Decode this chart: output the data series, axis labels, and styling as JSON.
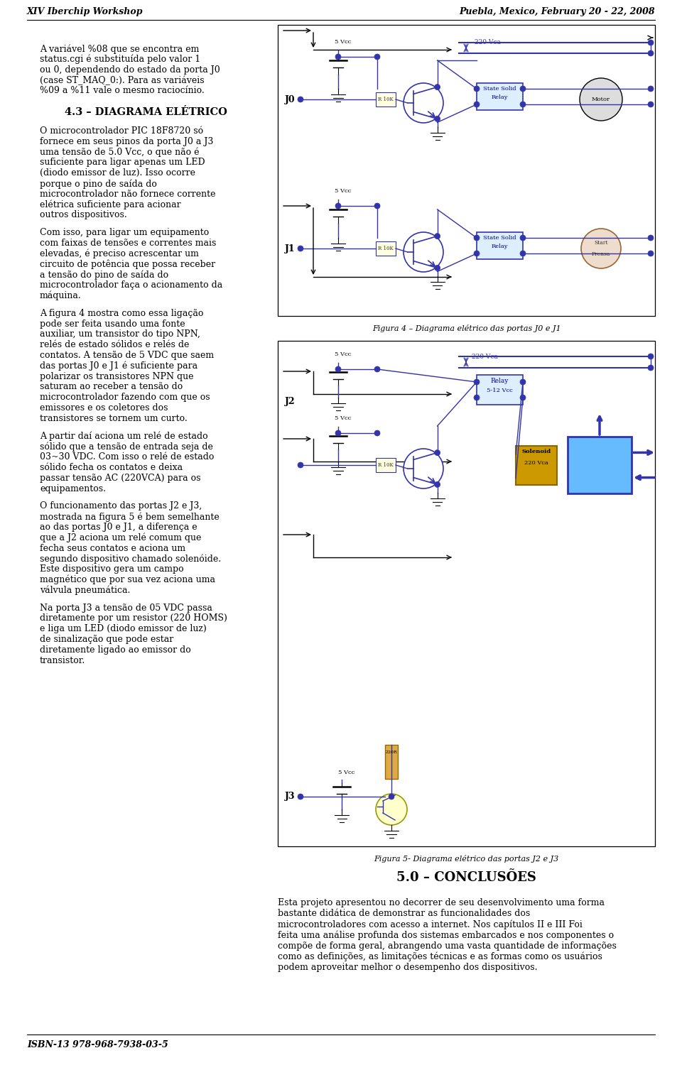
{
  "header_left": "XIV Iberchip Workshop",
  "header_right": "Puebla, Mexico, February 20 - 22, 2008",
  "footer_left": "ISBN-13 978-968-7938-03-5",
  "col1_paragraphs": [
    {
      "type": "body",
      "indent": true,
      "text": "A variável %08 que se encontra em status.cgi é substituída pelo valor 1 ou 0, dependendo do estado da porta J0 (case ST_MAQ_0:). Para as variáveis %09 a %11 vale o mesmo raciocínio."
    },
    {
      "type": "section",
      "text": "4.3 – DIAGRAMA ELÉTRICO"
    },
    {
      "type": "body",
      "indent": true,
      "text": "O microcontrolador PIC 18F8720 só fornece em seus pinos da porta J0 a J3 uma tensão de 5.0 Vcc, o que não é suficiente para ligar apenas um LED (diodo emissor de luz). Isso ocorre porque o pino de saída do microcontrolador não fornece corrente elétrica suficiente para acionar outros dispositivos."
    },
    {
      "type": "body",
      "indent": false,
      "text": "Com isso, para ligar um equipamento com faixas de tensões e correntes mais elevadas, é preciso acrescentar um circuito de potência que possa receber a tensão do pino de saída do microcontrolador faça o acionamento da máquina."
    },
    {
      "type": "body",
      "indent": false,
      "text": "A figura 4 mostra como essa ligação pode ser feita usando uma fonte auxiliar, um transistor do tipo NPN, relés de estado sólidos e relés de contatos. A tensão de 5 VDC que saem das portas J0 e J1 é suficiente para polarizar os transistores NPN que saturam ao receber a tensão do microcontrolador fazendo com que os emissores e os coletores dos transistores se tornem um curto."
    },
    {
      "type": "body",
      "indent": false,
      "text": "A partir daí aciona um relé de estado sólido que a tensão de entrada seja de 03~30 VDC. Com isso o relé de estado sólido fecha os contatos e deixa passar tensão AC (220VCA) para os equipamentos."
    },
    {
      "type": "body",
      "indent": false,
      "text": "O funcionamento das portas J2 e J3, mostrada na figura 5 é bem semelhante ao das portas J0 e J1, a diferença e que a J2 aciona um relé comum que fecha seus contatos e aciona um segundo dispositivo chamado solenóide. Este dispositivo gera um campo magnético que por sua vez aciona uma válvula pneumática."
    },
    {
      "type": "body",
      "indent": false,
      "text": "Na porta J3 a tensão de 05 VDC passa diretamente por um resistor (220 HOMS) e liga um LED (diodo emissor de luz) de sinalização que pode estar diretamente ligado ao emissor do transistor."
    }
  ],
  "figure4_caption": "Figura 4 – Diagrama elétrico das portas J0 e J1",
  "figure5_caption": "Figura 5- Diagrama elétrico das portas J2 e J3",
  "conclusion_title": "5.0 – CONCLUSÕES",
  "conclusion_text": "Esta projeto apresentou no decorrer de seu desenvolvimento uma forma bastante didática de demonstrar as funcionalidades dos microcontroladores com acesso a internet. Nos capítulos II e III Foi feita uma análise profunda dos sistemas embarcados e nos componentes o compõe de forma geral, abrangendo uma vasta quantidade de informações como as definições, as limitações técnicas e as formas como os usuários podem aproveitar melhor o desempenho dos dispositivos.",
  "bg_color": "#ffffff",
  "text_color": "#000000",
  "body_font_size": 9,
  "section_font_size": 10.5
}
